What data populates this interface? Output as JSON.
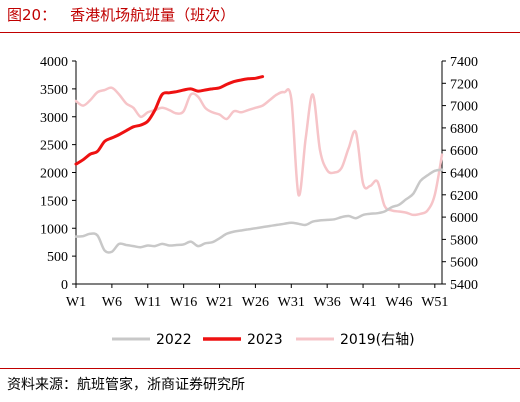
{
  "header": {
    "figure_number": "图20：",
    "title": "香港机场航班量（班次）"
  },
  "footer": {
    "source": "资料来源：航班管家，浙商证券研究所"
  },
  "colors": {
    "accent": "#c00000",
    "series_2022": "#c8c8c8",
    "series_2023": "#ee1111",
    "series_2019": "#f6c4c8"
  },
  "chart_data": {
    "type": "line",
    "title": "香港机场航班量（班次）",
    "xlabel": "",
    "ylabel": "",
    "x_ticks": [
      "W1",
      "W6",
      "W11",
      "W16",
      "W21",
      "W26",
      "W31",
      "W36",
      "W41",
      "W46",
      "W51"
    ],
    "ylim": [
      0,
      4000
    ],
    "y_ticks": [
      0,
      500,
      1000,
      1500,
      2000,
      2500,
      3000,
      3500,
      4000
    ],
    "y2lim": [
      5400,
      7400
    ],
    "y2_ticks": [
      5400,
      5600,
      5800,
      6000,
      6200,
      6400,
      6600,
      6800,
      7000,
      7200,
      7400
    ],
    "grid": false,
    "legend": "bottom",
    "series": [
      {
        "name": "2022",
        "axis": "left",
        "x": [
          1,
          2,
          3,
          4,
          5,
          6,
          7,
          8,
          9,
          10,
          11,
          12,
          13,
          14,
          15,
          16,
          17,
          18,
          19,
          20,
          21,
          22,
          23,
          24,
          25,
          26,
          27,
          28,
          29,
          30,
          31,
          32,
          33,
          34,
          35,
          36,
          37,
          38,
          39,
          40,
          41,
          42,
          43,
          44,
          45,
          46,
          47,
          48,
          49,
          50,
          51,
          52
        ],
        "values": [
          850,
          860,
          900,
          870,
          600,
          580,
          720,
          700,
          680,
          660,
          690,
          680,
          720,
          690,
          700,
          710,
          760,
          680,
          730,
          750,
          820,
          900,
          940,
          960,
          980,
          1000,
          1020,
          1040,
          1060,
          1080,
          1100,
          1080,
          1060,
          1120,
          1140,
          1150,
          1160,
          1200,
          1220,
          1180,
          1240,
          1260,
          1270,
          1300,
          1380,
          1420,
          1520,
          1620,
          1850,
          1950,
          2030,
          2050
        ]
      },
      {
        "name": "2023",
        "axis": "left",
        "x": [
          1,
          2,
          3,
          4,
          5,
          6,
          7,
          8,
          9,
          10,
          11,
          12,
          13,
          14,
          15,
          16,
          17,
          18,
          19,
          20,
          21,
          22,
          23,
          24,
          25,
          26,
          27
        ],
        "values": [
          2150,
          2230,
          2330,
          2380,
          2560,
          2620,
          2680,
          2750,
          2820,
          2850,
          2920,
          3120,
          3400,
          3430,
          3450,
          3480,
          3500,
          3460,
          3480,
          3500,
          3520,
          3580,
          3630,
          3660,
          3680,
          3690,
          3720
        ]
      },
      {
        "name": "2019(右轴)",
        "axis": "right",
        "x": [
          1,
          2,
          3,
          4,
          5,
          6,
          7,
          8,
          9,
          10,
          11,
          12,
          13,
          14,
          15,
          16,
          17,
          18,
          19,
          20,
          21,
          22,
          23,
          24,
          25,
          26,
          27,
          28,
          29,
          30,
          31,
          32,
          33,
          34,
          35,
          36,
          37,
          38,
          39,
          40,
          41,
          42,
          43,
          44,
          45,
          46,
          47,
          48,
          49,
          50,
          51,
          52
        ],
        "values": [
          7040,
          7000,
          7050,
          7120,
          7140,
          7160,
          7100,
          7020,
          6980,
          6900,
          6940,
          6960,
          6980,
          6960,
          6930,
          6950,
          7100,
          7080,
          6980,
          6940,
          6920,
          6880,
          6950,
          6940,
          6960,
          6980,
          7000,
          7050,
          7100,
          7120,
          7060,
          6200,
          6700,
          7100,
          6600,
          6420,
          6400,
          6440,
          6620,
          6760,
          6300,
          6280,
          6320,
          6100,
          6060,
          6050,
          6040,
          6020,
          6030,
          6060,
          6200,
          6560
        ]
      }
    ]
  }
}
